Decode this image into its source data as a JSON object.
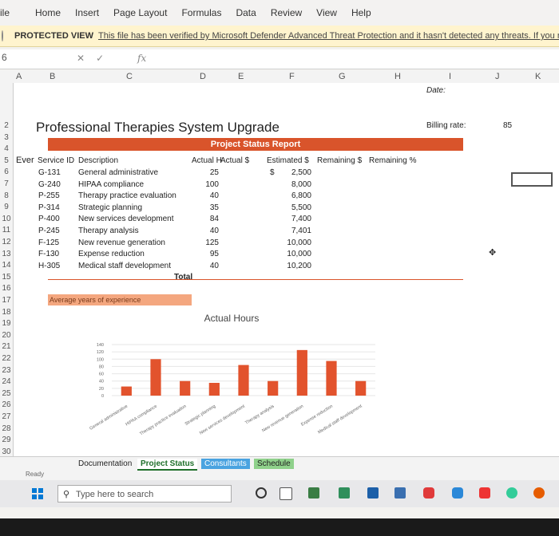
{
  "ribbon": {
    "tabs": [
      "ile",
      "Home",
      "Insert",
      "Page Layout",
      "Formulas",
      "Data",
      "Review",
      "View",
      "Help"
    ]
  },
  "protected_view": {
    "label": "PROTECTED VIEW",
    "message": "This file has been verified by Microsoft Defender Advanced Threat Protection and it hasn't detected any threats. If you need to edit this file, click"
  },
  "formula_bar": {
    "name_box": "6",
    "cancel": "✕",
    "enter": "✓",
    "fx": "fx"
  },
  "columns": [
    "A",
    "B",
    "C",
    "D",
    "E",
    "F",
    "G",
    "H",
    "I",
    "J",
    "K"
  ],
  "rows": [
    "2",
    "3",
    "4",
    "5",
    "6",
    "7",
    "8",
    "9",
    "10",
    "11",
    "12",
    "13",
    "14",
    "15",
    "16",
    "17",
    "18",
    "19",
    "20",
    "21",
    "22",
    "23",
    "24",
    "25",
    "26",
    "27",
    "28",
    "29",
    "30"
  ],
  "sheet": {
    "title": "Professional Therapies System Upgrade",
    "banner": "Project Status Report",
    "date_label": "Date:",
    "billing_label": "Billing rate:",
    "billing_value": "85",
    "headers": {
      "ever": "Ever",
      "service_id": "Service ID",
      "description": "Description",
      "actual_h": "Actual H",
      "actual_s": "Actual $",
      "estimated": "Estimated $",
      "remaining": "Remaining $",
      "remaining_pct": "Remaining %"
    },
    "dollar_sign": "$",
    "items": [
      {
        "id": "G-131",
        "desc": "General administrative",
        "hours": "25",
        "est": "2,500"
      },
      {
        "id": "G-240",
        "desc": "HIPAA compliance",
        "hours": "100",
        "est": "8,000"
      },
      {
        "id": "P-255",
        "desc": "Therapy practice evaluation",
        "hours": "40",
        "est": "6,800"
      },
      {
        "id": "P-314",
        "desc": "Strategic planning",
        "hours": "35",
        "est": "5,500"
      },
      {
        "id": "P-400",
        "desc": "New services development",
        "hours": "84",
        "est": "7,400"
      },
      {
        "id": "P-245",
        "desc": "Therapy analysis",
        "hours": "40",
        "est": "7,401"
      },
      {
        "id": "F-125",
        "desc": "New revenue generation",
        "hours": "125",
        "est": "10,000"
      },
      {
        "id": "F-130",
        "desc": "Expense reduction",
        "hours": "95",
        "est": "10,000"
      },
      {
        "id": "H-305",
        "desc": "Medical staff development",
        "hours": "40",
        "est": "10,200"
      }
    ],
    "total_label": "Total",
    "avg_label": "Average years of experience"
  },
  "chart_data": {
    "type": "bar",
    "title": "Actual Hours",
    "categories": [
      "General administrative",
      "HIPAA compliance",
      "Therapy practice evaluation",
      "Strategic planning",
      "New services development",
      "Therapy analysis",
      "New revenue generation",
      "Expense reduction",
      "Medical staff development"
    ],
    "values": [
      25,
      100,
      40,
      35,
      84,
      40,
      125,
      95,
      40
    ],
    "ylim": [
      0,
      140
    ],
    "yticks": [
      "140",
      "120",
      "100",
      "80",
      "60",
      "40",
      "20",
      "0"
    ],
    "color": "#e2532d"
  },
  "sheet_tabs": [
    "Documentation",
    "Project Status",
    "Consultants",
    "Schedule"
  ],
  "status": "Ready",
  "taskbar": {
    "search_placeholder": "Type here to search"
  }
}
